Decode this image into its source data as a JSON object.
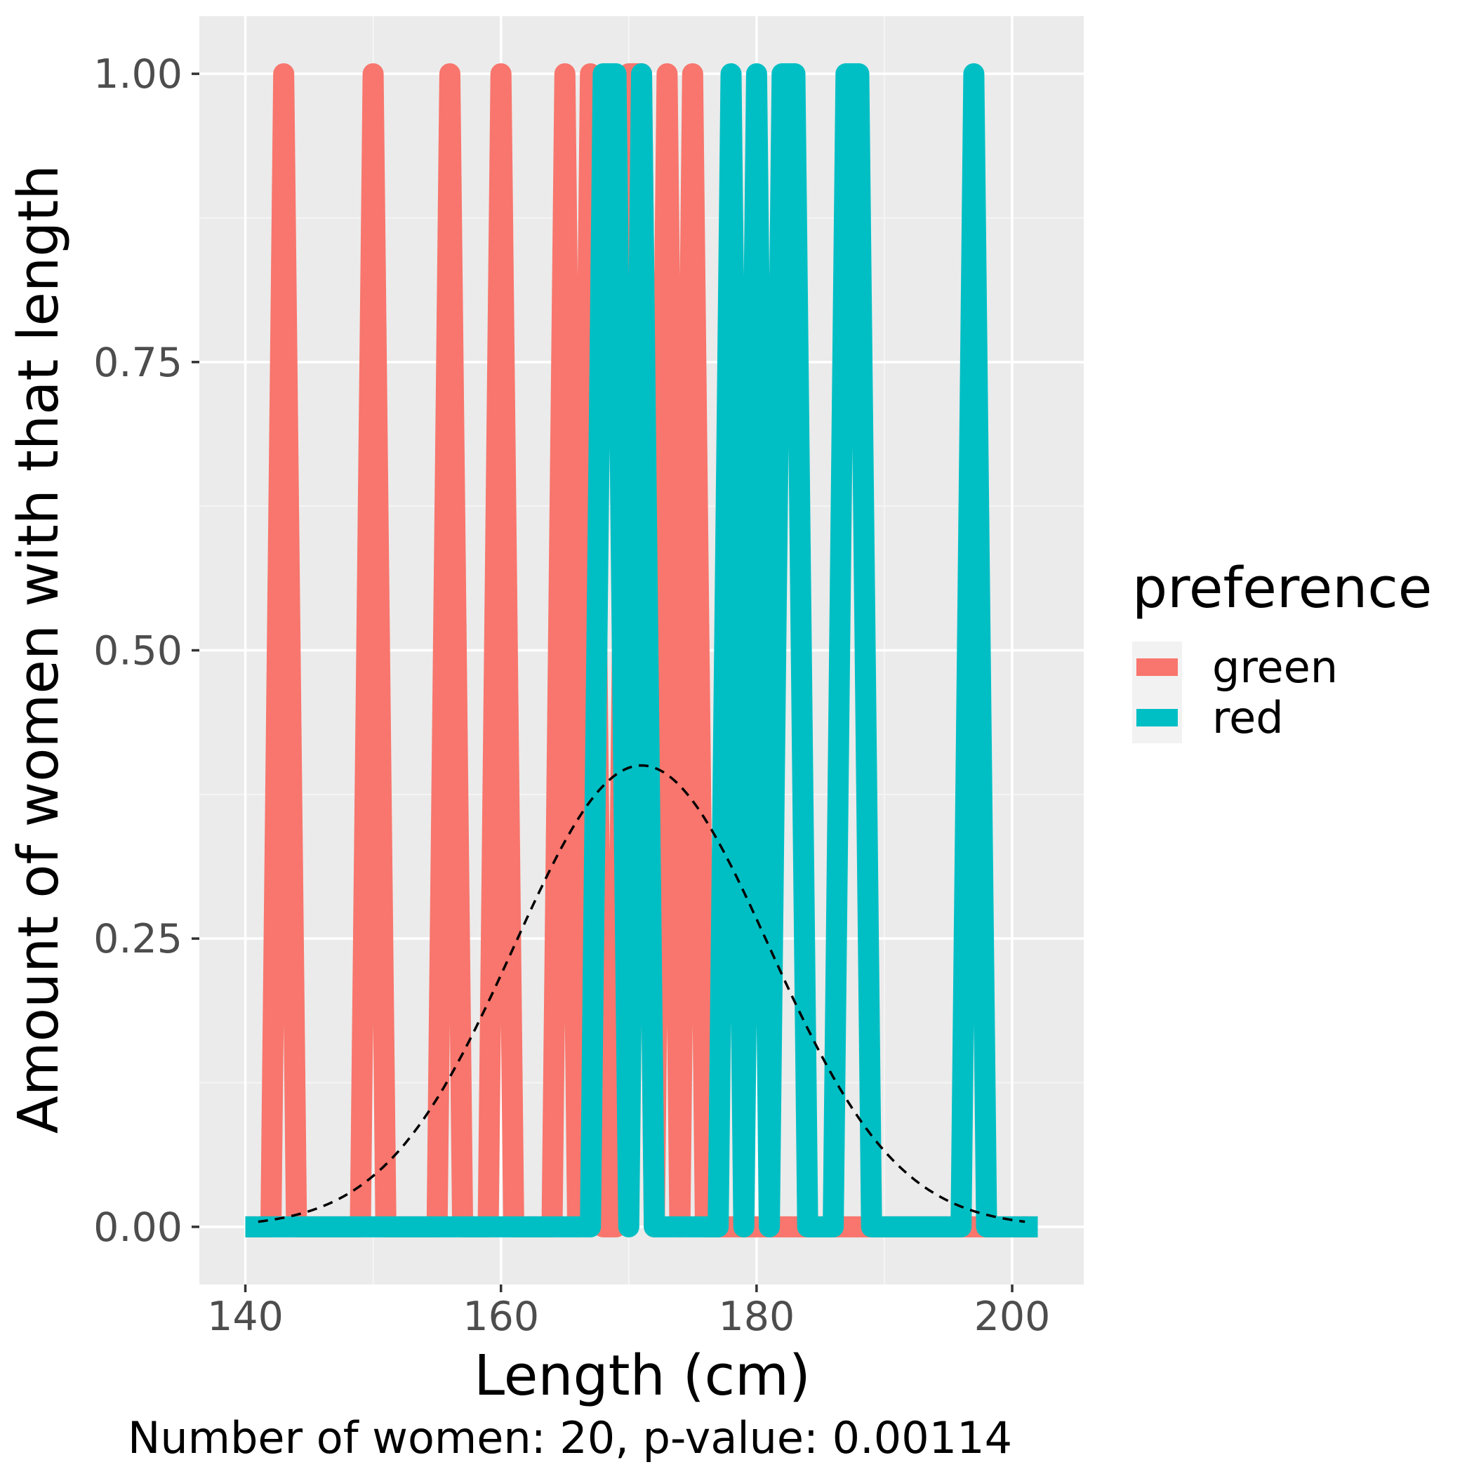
{
  "chart_data": {
    "type": "line",
    "xlabel": "Length (cm)",
    "ylabel": "Amount of women with that length",
    "caption": "Number of women: 20, p-value: 0.00114",
    "xlim": [
      136.4,
      205.6
    ],
    "ylim": [
      -0.05,
      1.05
    ],
    "x_ticks": [
      140,
      160,
      180,
      200
    ],
    "x_tick_labels": [
      "140",
      "160",
      "180",
      "200"
    ],
    "y_ticks": [
      0,
      0.25,
      0.5,
      0.75,
      1
    ],
    "y_tick_labels": [
      "0.00",
      "0.25",
      "0.50",
      "0.75",
      "1.00"
    ],
    "grid": true,
    "legend": {
      "title": "preference",
      "position": "right"
    },
    "series": [
      {
        "name": "green",
        "color": "#F8766D",
        "points": [
          [
            140,
            0
          ],
          [
            142,
            0
          ],
          [
            143,
            1
          ],
          [
            144,
            0
          ],
          [
            149,
            0
          ],
          [
            150,
            1
          ],
          [
            151,
            0
          ],
          [
            155,
            0
          ],
          [
            156,
            1
          ],
          [
            157,
            0
          ],
          [
            159,
            0
          ],
          [
            160,
            1
          ],
          [
            161,
            0
          ],
          [
            164,
            0
          ],
          [
            165,
            1
          ],
          [
            166,
            0
          ],
          [
            167,
            1
          ],
          [
            168,
            0
          ],
          [
            169,
            0
          ],
          [
            170,
            1
          ],
          [
            171,
            1
          ],
          [
            172,
            0
          ],
          [
            173,
            1
          ],
          [
            174,
            0
          ],
          [
            175,
            1
          ],
          [
            176,
            0
          ],
          [
            202,
            0
          ]
        ]
      },
      {
        "name": "red",
        "color": "#00BFC4",
        "points": [
          [
            140,
            0
          ],
          [
            167,
            0
          ],
          [
            168,
            1
          ],
          [
            169,
            1
          ],
          [
            170,
            0
          ],
          [
            171,
            1
          ],
          [
            172,
            0
          ],
          [
            177,
            0
          ],
          [
            178,
            1
          ],
          [
            179,
            0
          ],
          [
            180,
            1
          ],
          [
            181,
            0
          ],
          [
            182,
            1
          ],
          [
            183,
            1
          ],
          [
            184,
            0
          ],
          [
            186,
            0
          ],
          [
            187,
            1
          ],
          [
            188,
            1
          ],
          [
            189,
            0
          ],
          [
            196,
            0
          ],
          [
            197,
            1
          ],
          [
            198,
            0
          ],
          [
            202,
            0
          ]
        ]
      }
    ],
    "reference_curve": {
      "style": "dashed",
      "color": "#000000",
      "description_free": true,
      "mean": 171,
      "sd": 10,
      "scale": 10.03,
      "x_range": [
        141,
        201
      ]
    }
  },
  "colors": {
    "panel_background": "#EBEBEB",
    "grid_major": "#FFFFFF",
    "grid_minor": "#F5F5F5",
    "legend_key_background": "#F2F2F2"
  }
}
